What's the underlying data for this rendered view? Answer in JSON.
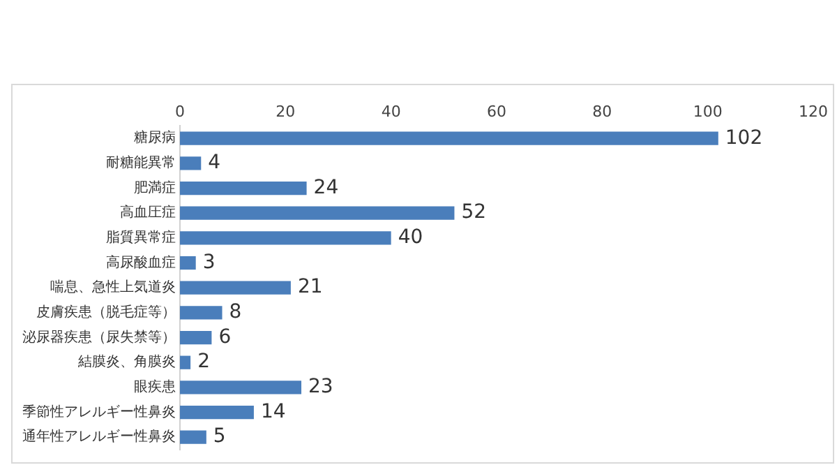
{
  "chart_data": {
    "type": "bar",
    "orientation": "horizontal",
    "categories": [
      "糖尿病",
      "耐糖能異常",
      "肥満症",
      "高血圧症",
      "脂質異常症",
      "高尿酸血症",
      "喘息、急性上気道炎",
      "皮膚疾患（脱毛症等）",
      "泌尿器疾患（尿失禁等）",
      "結膜炎、角膜炎",
      "眼疾患",
      "季節性アレルギー性鼻炎",
      "通年性アレルギー性鼻炎"
    ],
    "values": [
      102,
      4,
      24,
      52,
      40,
      3,
      21,
      8,
      6,
      2,
      23,
      14,
      5
    ],
    "color": "#4a7ebb",
    "xlim": [
      0,
      120
    ],
    "xticks": [
      0,
      20,
      40,
      60,
      80,
      100,
      120
    ],
    "data_labels": true,
    "grid": false,
    "legend": false
  }
}
